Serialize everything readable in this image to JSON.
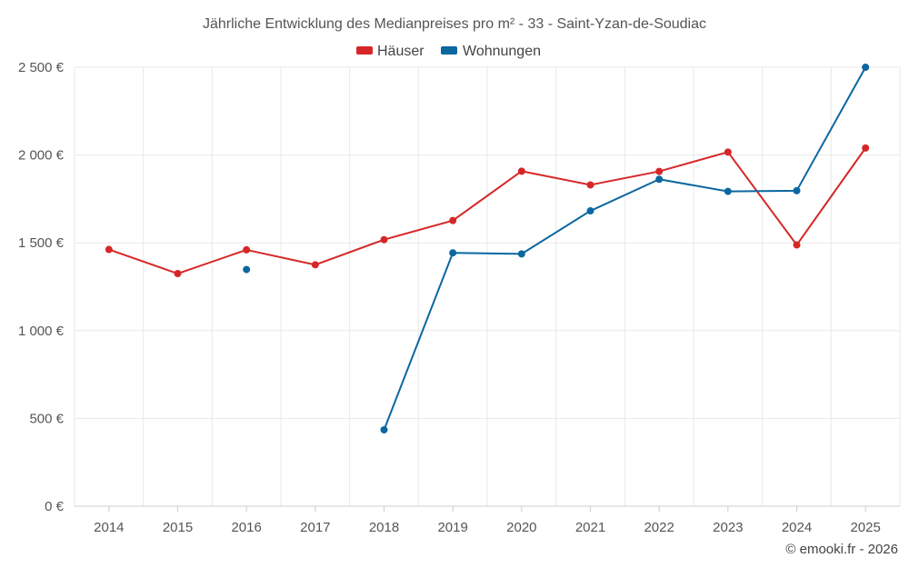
{
  "chart_data": {
    "type": "line",
    "title": "Jährliche Entwicklung des Medianpreises pro m² - 33 - Saint-Yzan-de-Soudiac",
    "categories": [
      "2014",
      "2015",
      "2016",
      "2017",
      "2018",
      "2019",
      "2020",
      "2021",
      "2022",
      "2023",
      "2024",
      "2025"
    ],
    "ylim": [
      0,
      2500
    ],
    "yticks": [
      0,
      500,
      1000,
      1500,
      2000,
      2500
    ],
    "ytick_labels": [
      "0 €",
      "500 €",
      "1 000 €",
      "1 500 €",
      "2 000 €",
      "2 500 €"
    ],
    "legend_position": "top-center",
    "grid": true,
    "series": [
      {
        "name": "Häuser",
        "color": "#d62728",
        "values": [
          1462,
          1325,
          1460,
          1375,
          1518,
          1627,
          1908,
          1830,
          1907,
          2017,
          1488,
          2040
        ]
      },
      {
        "name": "Wohnungen",
        "color": "#0b67a0",
        "values": [
          null,
          null,
          1348,
          null,
          435,
          1443,
          1437,
          1682,
          1862,
          1793,
          1797,
          2500
        ]
      }
    ]
  },
  "credit": "© emooki.fr - 2026"
}
